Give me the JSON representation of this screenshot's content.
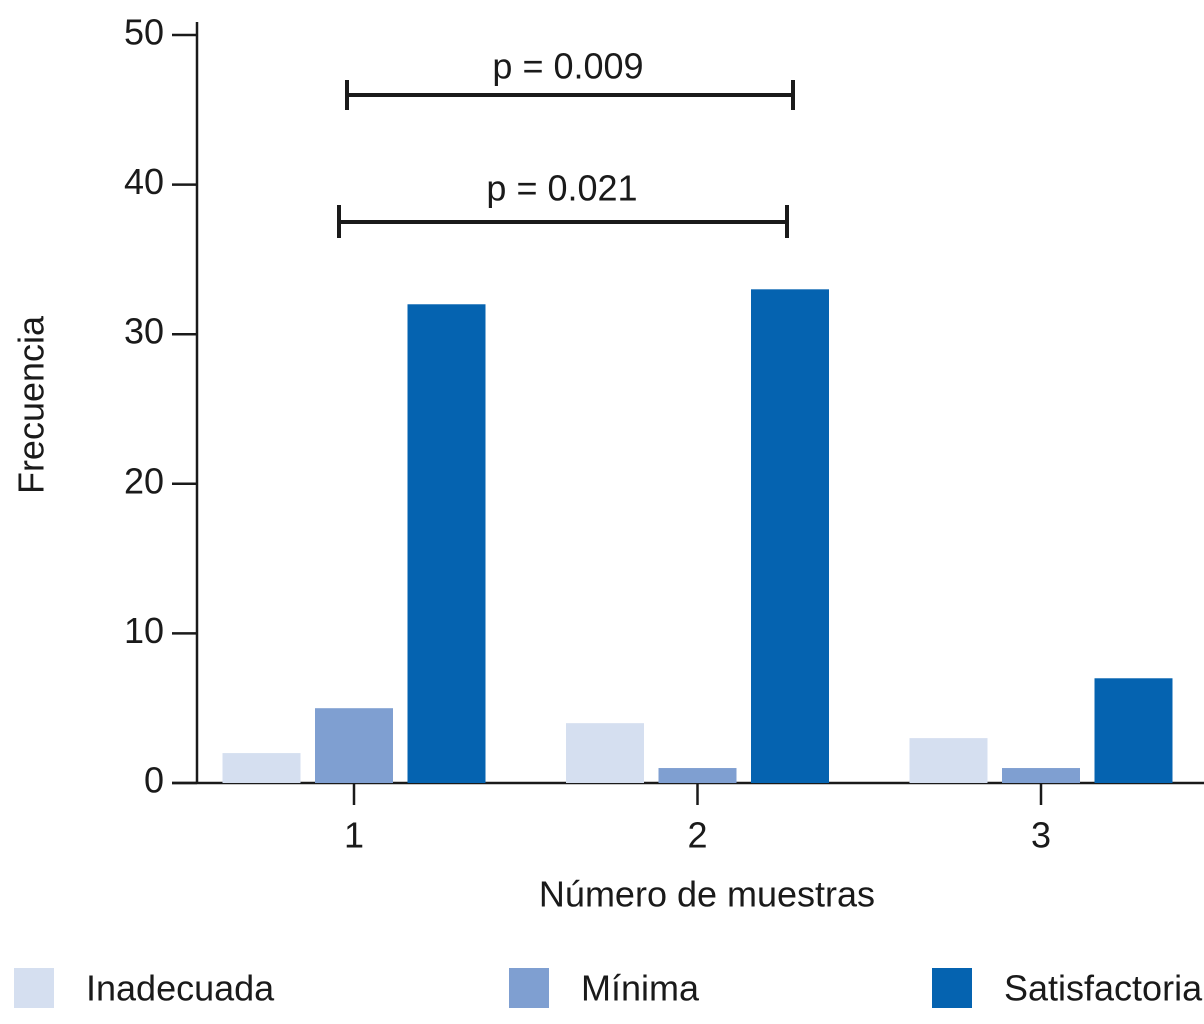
{
  "chart_data": {
    "type": "bar",
    "x_label": "Número de muestras",
    "y_label": "Frecuencia",
    "categories": [
      "1",
      "2",
      "3"
    ],
    "series": [
      {
        "name": "Inadecuada",
        "color": "#d5dff0",
        "values": [
          2,
          4,
          3
        ]
      },
      {
        "name": "Mínima",
        "color": "#7f9fd1",
        "values": [
          5,
          1,
          1
        ]
      },
      {
        "name": "Satisfactoria",
        "color": "#0563b0",
        "values": [
          32,
          33,
          7
        ]
      }
    ],
    "ylim": [
      0,
      50
    ],
    "yticks": [
      0,
      10,
      20,
      30,
      40,
      50
    ],
    "annotations": [
      "p = 0.009",
      "p = 0.021"
    ],
    "legend": "bottom"
  }
}
